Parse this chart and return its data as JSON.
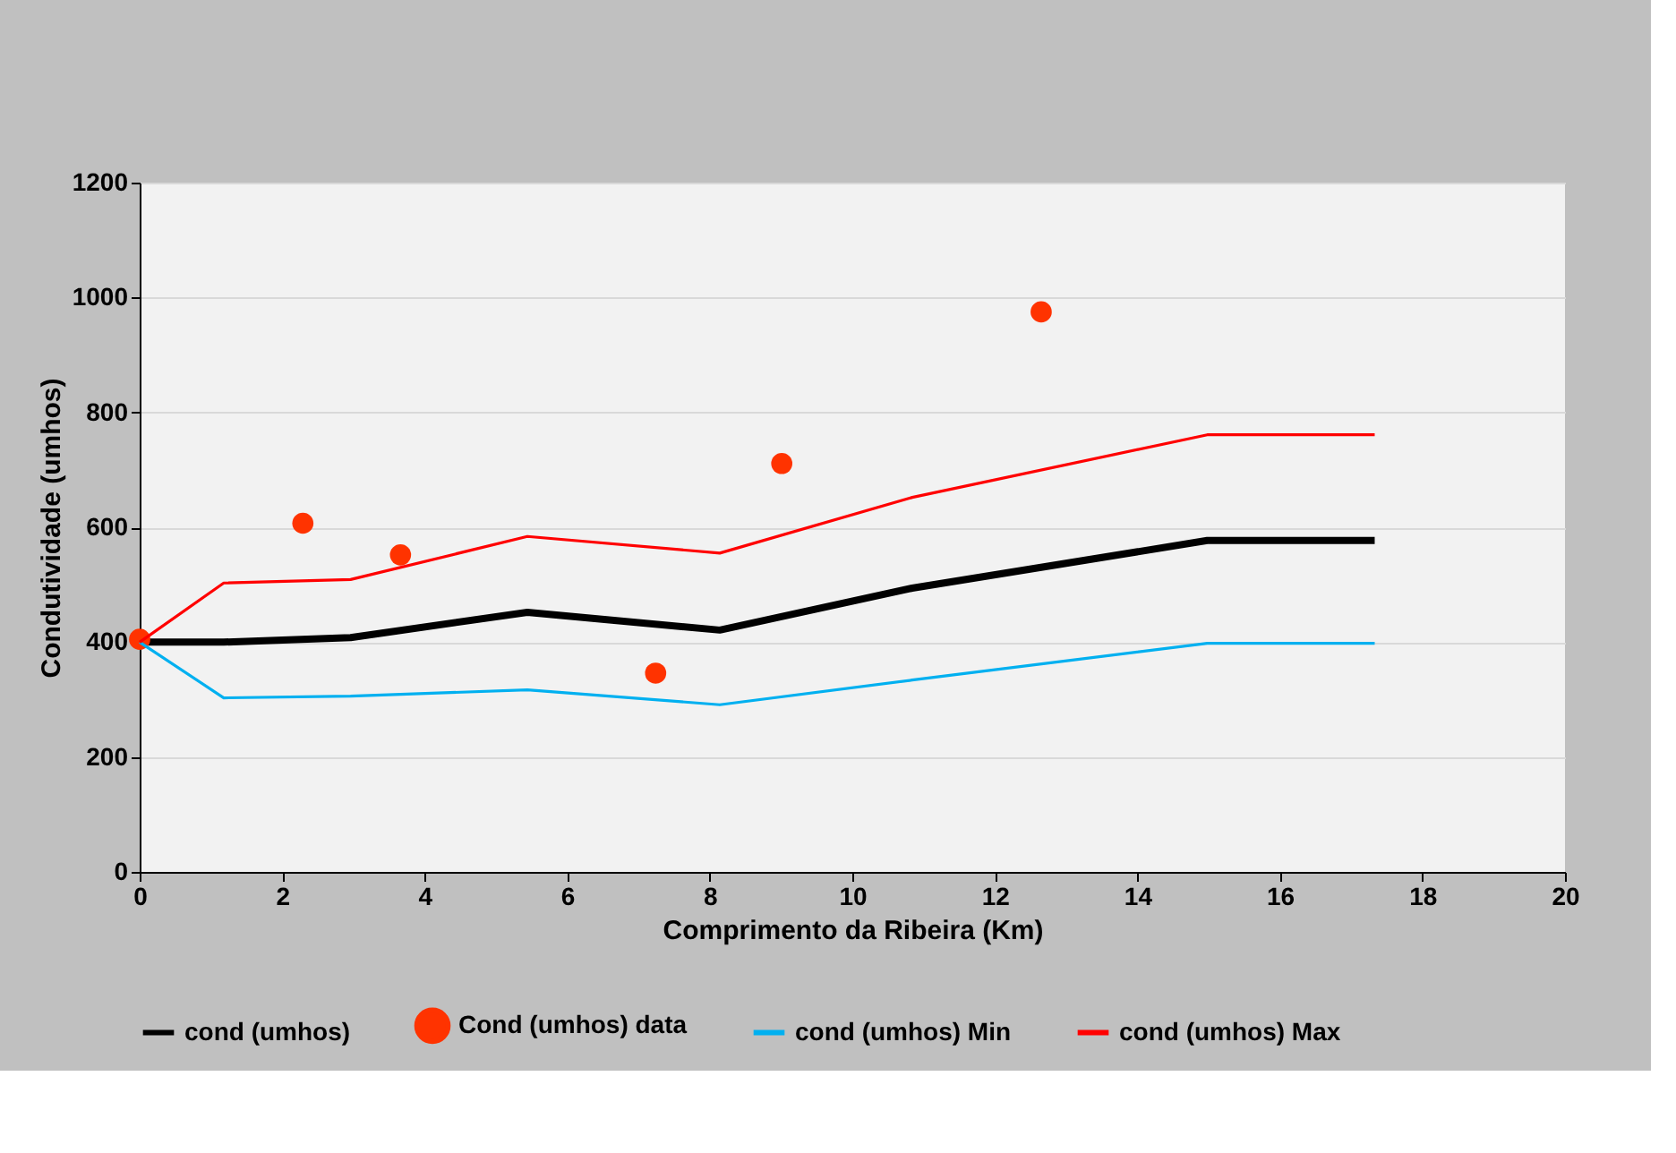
{
  "chart_data": {
    "type": "line",
    "xlabel": "Comprimento da Ribeira (Km)",
    "ylabel": "Condutividade (umhos)",
    "xlim": [
      0,
      20
    ],
    "xticks": [
      0,
      2,
      4,
      6,
      8,
      10,
      12,
      14,
      16,
      18,
      20
    ],
    "ylim": [
      0,
      1200
    ],
    "yticks": [
      0,
      200,
      400,
      600,
      800,
      1000,
      1200
    ],
    "grid": "y",
    "legend": "bottom",
    "series": [
      {
        "name": "cond (umhos)",
        "color": "#000000",
        "x": [
          0,
          1.18,
          2.96,
          5.44,
          8.14,
          10.84,
          14.98,
          17.33
        ],
        "values": [
          400,
          400,
          408,
          452,
          421,
          494,
          577,
          577
        ]
      },
      {
        "name": "Cond (umhos) data",
        "type": "scatter",
        "marker": "circle",
        "color": "#ff3300",
        "x": [
          0,
          2.29,
          3.66,
          7.24,
          9.01,
          12.65
        ],
        "values": [
          405,
          607,
          552,
          346,
          711,
          975
        ]
      },
      {
        "name": "cond (umhos) Min",
        "color": "#00b0f0",
        "x": [
          0,
          1.18,
          2.96,
          5.44,
          8.14,
          10.84,
          14.98,
          17.33
        ],
        "values": [
          400,
          303,
          306,
          317,
          291,
          334,
          398,
          398
        ]
      },
      {
        "name": "cond (umhos) Max",
        "color": "#ff0000",
        "x": [
          0,
          1.18,
          2.96,
          5.44,
          8.14,
          10.84,
          14.98,
          17.33
        ],
        "values": [
          400,
          503,
          509,
          584,
          555,
          652,
          761,
          761
        ]
      }
    ]
  }
}
